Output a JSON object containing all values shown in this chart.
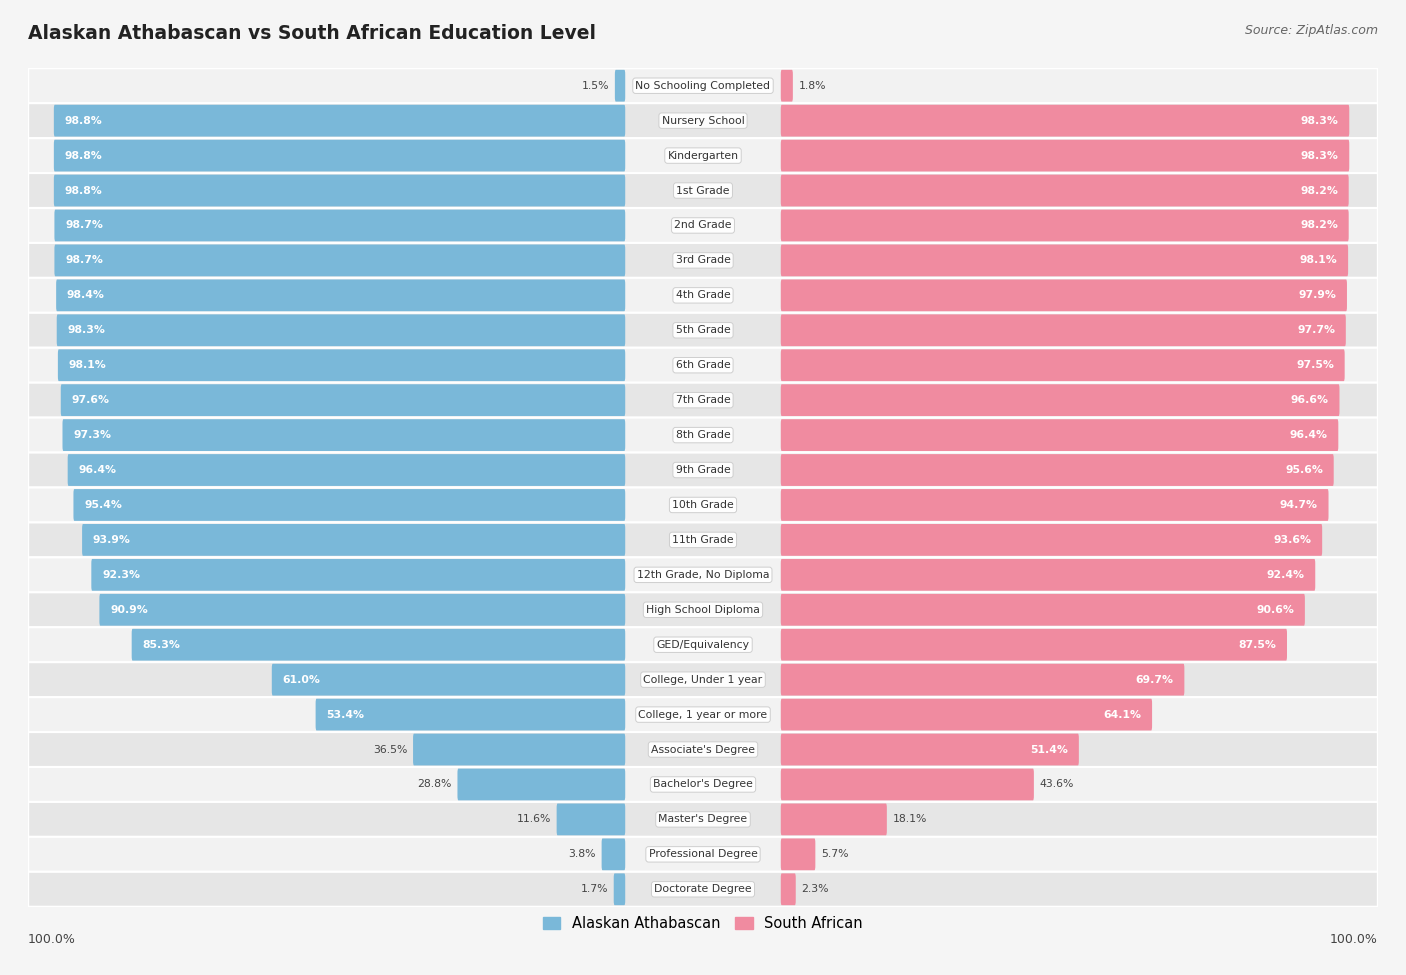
{
  "title": "Alaskan Athabascan vs South African Education Level",
  "source": "Source: ZipAtlas.com",
  "categories": [
    "No Schooling Completed",
    "Nursery School",
    "Kindergarten",
    "1st Grade",
    "2nd Grade",
    "3rd Grade",
    "4th Grade",
    "5th Grade",
    "6th Grade",
    "7th Grade",
    "8th Grade",
    "9th Grade",
    "10th Grade",
    "11th Grade",
    "12th Grade, No Diploma",
    "High School Diploma",
    "GED/Equivalency",
    "College, Under 1 year",
    "College, 1 year or more",
    "Associate's Degree",
    "Bachelor's Degree",
    "Master's Degree",
    "Professional Degree",
    "Doctorate Degree"
  ],
  "alaskan_values": [
    1.5,
    98.8,
    98.8,
    98.8,
    98.7,
    98.7,
    98.4,
    98.3,
    98.1,
    97.6,
    97.3,
    96.4,
    95.4,
    93.9,
    92.3,
    90.9,
    85.3,
    61.0,
    53.4,
    36.5,
    28.8,
    11.6,
    3.8,
    1.7
  ],
  "south_african_values": [
    1.8,
    98.3,
    98.3,
    98.2,
    98.2,
    98.1,
    97.9,
    97.7,
    97.5,
    96.6,
    96.4,
    95.6,
    94.7,
    93.6,
    92.4,
    90.6,
    87.5,
    69.7,
    64.1,
    51.4,
    43.6,
    18.1,
    5.7,
    2.3
  ],
  "alaskan_color": "#7ab8d9",
  "south_african_color": "#f08ba0",
  "row_bg_even": "#f2f2f2",
  "row_bg_odd": "#e6e6e6",
  "label_inside_color": "white",
  "label_outside_color": "#444444",
  "center_label_color": "#333333",
  "background_color": "#f5f5f5"
}
